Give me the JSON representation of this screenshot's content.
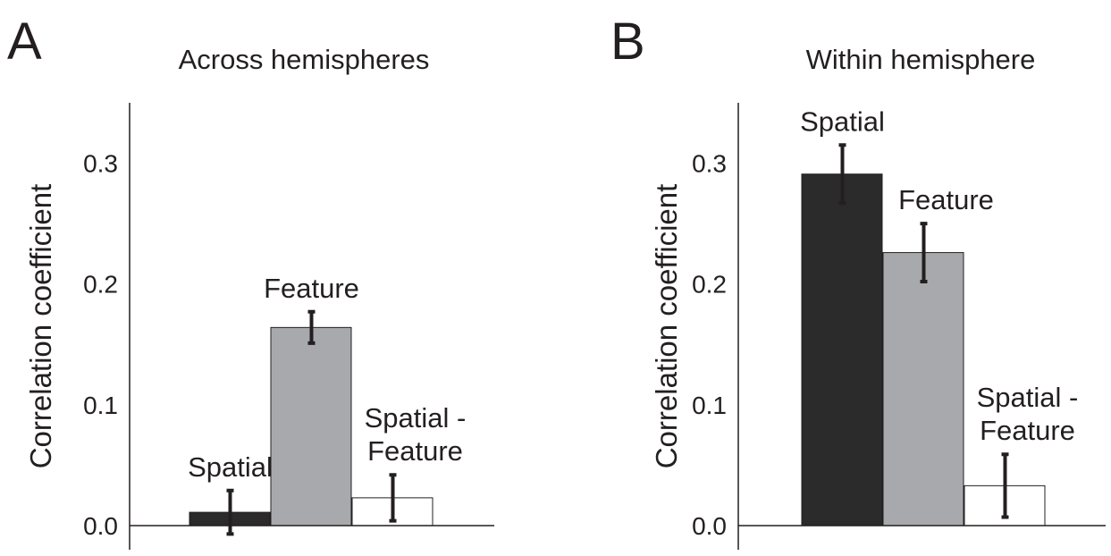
{
  "chart_data": [
    {
      "type": "bar",
      "panel": "A",
      "title": "Across hemispheres",
      "ylabel": "Correlation coefficient",
      "categories": [
        "Spatial",
        "Feature",
        "Spatial -\nFeature"
      ],
      "values": [
        0.011,
        0.164,
        0.023
      ],
      "errors": [
        0.018,
        0.013,
        0.019
      ],
      "colors": [
        "#2b2b2b",
        "#a7a9ac",
        "#ffffff"
      ],
      "ylim": [
        -0.02,
        0.35
      ],
      "yticks": [
        {
          "value": 0,
          "label": "0.0"
        },
        0.1,
        0.2,
        0.3
      ]
    },
    {
      "type": "bar",
      "panel": "B",
      "title": "Within hemisphere",
      "ylabel": "Correlation coefficient",
      "categories": [
        "Spatial",
        "Feature",
        "Spatial -\nFeature"
      ],
      "values": [
        0.291,
        0.226,
        0.033
      ],
      "errors": [
        0.024,
        0.024,
        0.026
      ],
      "colors": [
        "#2b2b2b",
        "#a7a9ac",
        "#ffffff"
      ],
      "ylim": [
        -0.02,
        0.35
      ],
      "yticks": [
        {
          "value": 0,
          "label": "0.0"
        },
        0.1,
        0.2,
        0.3
      ]
    }
  ]
}
